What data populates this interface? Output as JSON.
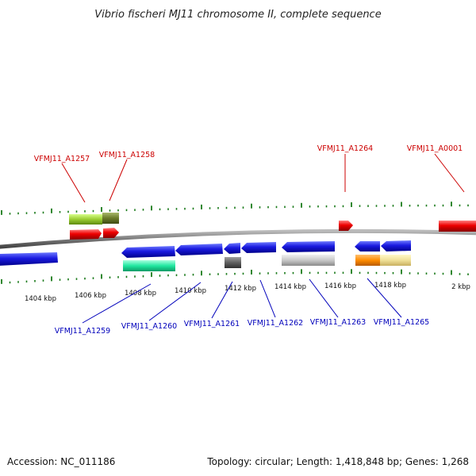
{
  "title": "Vibrio fischeri MJ11 chromosome II, complete sequence",
  "footer": {
    "accession": "Accession: NC_011186",
    "summary": "Topology: circular; Length: 1,418,848 bp; Genes: 1,268"
  },
  "scale_labels": [
    "1404 kbp",
    "1406 kbp",
    "1408 kbp",
    "1410 kbp",
    "1412 kbp",
    "1414 kbp",
    "1416 kbp",
    "1418 kbp",
    "2 kbp"
  ],
  "top_labels": [
    "VFMJ11_A1257",
    "VFMJ11_A1258",
    "VFMJ11_A1264",
    "VFMJ11_A0001"
  ],
  "bottom_labels": [
    "VFMJ11_A1259",
    "VFMJ11_A1260",
    "VFMJ11_A1261",
    "VFMJ11_A1262",
    "VFMJ11_A1263",
    "VFMJ11_A1265"
  ],
  "colors": {
    "forward_gene": "#dd0000",
    "reverse_gene": "#0000dd",
    "backbone": "#777777",
    "tick": "#1a7a1a",
    "top_label": "#cc0000",
    "bottom_label": "#0000bb"
  }
}
